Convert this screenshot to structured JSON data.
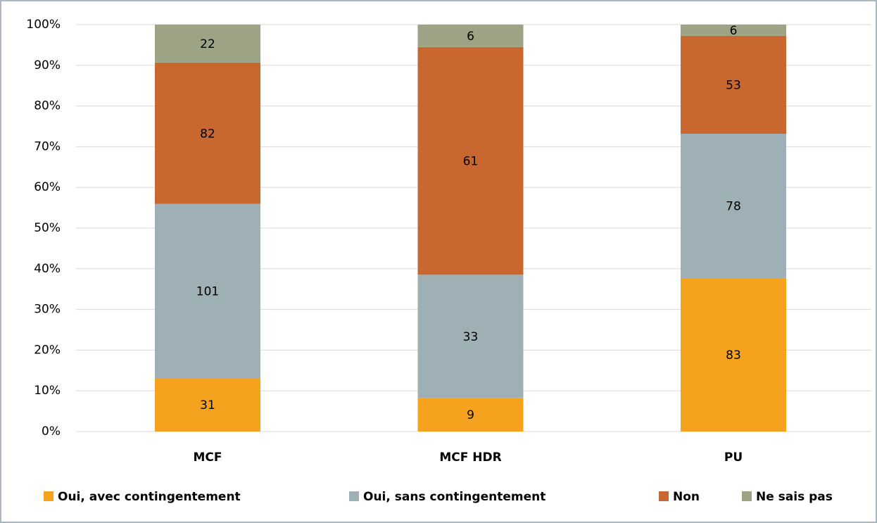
{
  "chart_data": {
    "type": "bar",
    "stacked": "percent",
    "categories": [
      "MCF",
      "MCF HDR",
      "PU"
    ],
    "series": [
      {
        "name": "Oui, avec contingentement",
        "color": "#f5a31f",
        "values": [
          31,
          9,
          83
        ]
      },
      {
        "name": "Oui, sans contingentement",
        "color": "#9eafb5",
        "values": [
          101,
          33,
          78
        ]
      },
      {
        "name": "Non",
        "color": "#c96731",
        "values": [
          82,
          61,
          53
        ]
      },
      {
        "name": "Ne sais pas",
        "color": "#9da485",
        "values": [
          22,
          6,
          6
        ]
      }
    ],
    "ylim": [
      0,
      100
    ],
    "yticks": [
      {
        "value": 0,
        "label": "0%"
      },
      {
        "value": 10,
        "label": "10%"
      },
      {
        "value": 20,
        "label": "20%"
      },
      {
        "value": 30,
        "label": "30%"
      },
      {
        "value": 40,
        "label": "40%"
      },
      {
        "value": 50,
        "label": "50%"
      },
      {
        "value": 60,
        "label": "60%"
      },
      {
        "value": 70,
        "label": "70%"
      },
      {
        "value": 80,
        "label": "80%"
      },
      {
        "value": 90,
        "label": "90%"
      },
      {
        "value": 100,
        "label": "100%"
      }
    ],
    "grid": true,
    "legend": "bottom"
  }
}
